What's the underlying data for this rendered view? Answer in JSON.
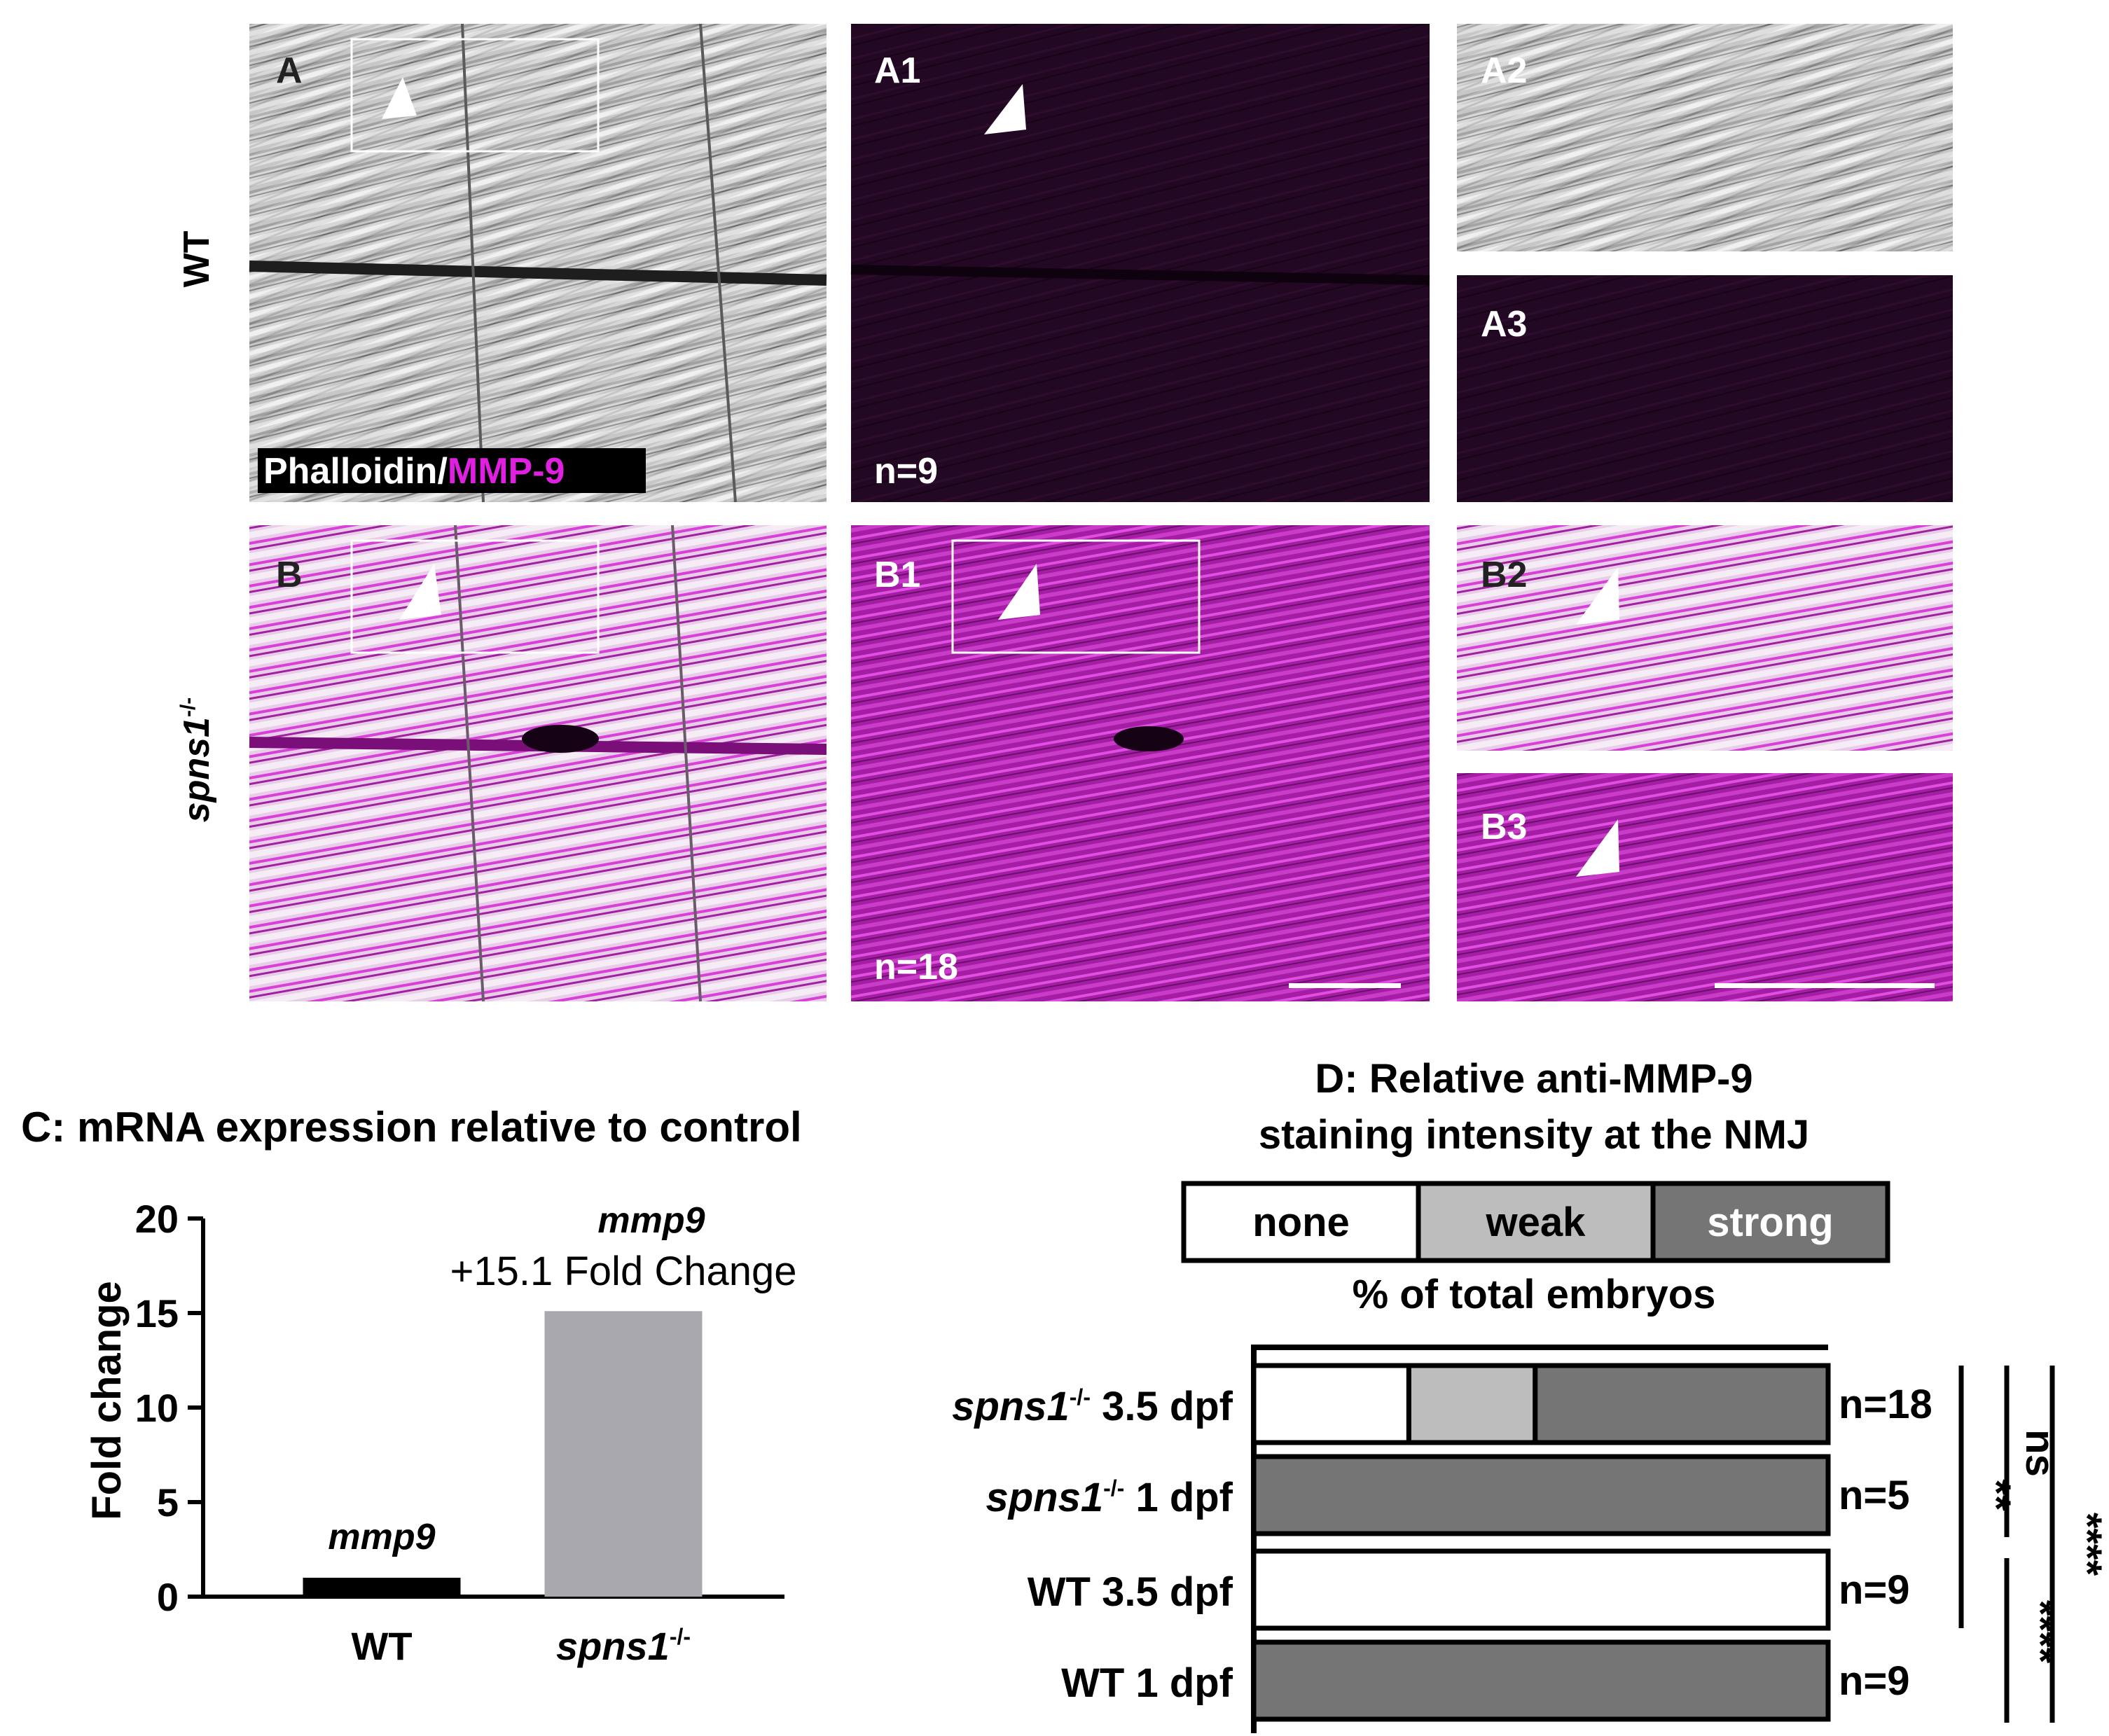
{
  "figure": {
    "row_labels": {
      "wt": "WT",
      "mutant_base": "spns1",
      "mutant_sup": "-/-"
    },
    "stain_label": {
      "part1": "Phalloidin/",
      "part2": "MMP-9"
    },
    "panels": {
      "A": "A",
      "A1": "A1",
      "A2": "A2",
      "A3": "A3",
      "B": "B",
      "B1": "B1",
      "B2": "B2",
      "B3": "B3"
    },
    "n_labels": {
      "A1": "n=9",
      "B1": "n=18"
    },
    "colors": {
      "magenta": "#e020e0",
      "dark_magenta": "#2a0a2a",
      "muscle_gray": "#c8c8c8"
    }
  },
  "panel_c": {
    "title": "C: mRNA expression relative to control",
    "annotation_top": "mmp9",
    "annotation_bottom": "+15.1 Fold Change",
    "wt_bar_label": "mmp9",
    "chart_data": {
      "type": "bar",
      "categories": [
        "WT",
        "spns1-/-"
      ],
      "category_parts": [
        {
          "base": "WT",
          "sup": ""
        },
        {
          "base": "spns1",
          "sup": "-/-"
        }
      ],
      "values": [
        1,
        15.1
      ],
      "colors": [
        "#000000",
        "#a8a8ad"
      ],
      "ylabel": "Fold change",
      "ylim": [
        0,
        20
      ],
      "yticks": [
        "0",
        "5",
        "10",
        "15",
        "20"
      ]
    }
  },
  "panel_d": {
    "title_line1": "D: Relative anti-MMP-9",
    "title_line2": "staining intensity at the NMJ",
    "legend": [
      {
        "label": "none",
        "color": "#ffffff"
      },
      {
        "label": "weak",
        "color": "#bdbdbd"
      },
      {
        "label": "strong",
        "color": "#757575"
      }
    ],
    "subtitle": "% of total embryos",
    "chart_data": {
      "type": "bar",
      "orientation": "horizontal-stacked",
      "categories": [
        "spns1-/- 3.5 dpf",
        "spns1-/- 1 dpf",
        "WT 3.5 dpf",
        "WT 1 dpf"
      ],
      "category_parts": [
        {
          "base": "spns1",
          "sup": "-/-",
          "rest": " 3.5 dpf"
        },
        {
          "base": "spns1",
          "sup": "-/-",
          "rest": " 1 dpf"
        },
        {
          "base": "",
          "sup": "",
          "rest": "WT 3.5 dpf"
        },
        {
          "base": "",
          "sup": "",
          "rest": "WT 1 dpf"
        }
      ],
      "series": [
        {
          "name": "none",
          "values": [
            27,
            0,
            100,
            0
          ]
        },
        {
          "name": "weak",
          "values": [
            22,
            0,
            0,
            0
          ]
        },
        {
          "name": "strong",
          "values": [
            51,
            100,
            0,
            100
          ]
        }
      ],
      "n_labels": [
        "n=18",
        "n=5",
        "n=9",
        "n=9"
      ],
      "significance": [
        "**",
        "ns",
        "****",
        "****"
      ]
    }
  }
}
